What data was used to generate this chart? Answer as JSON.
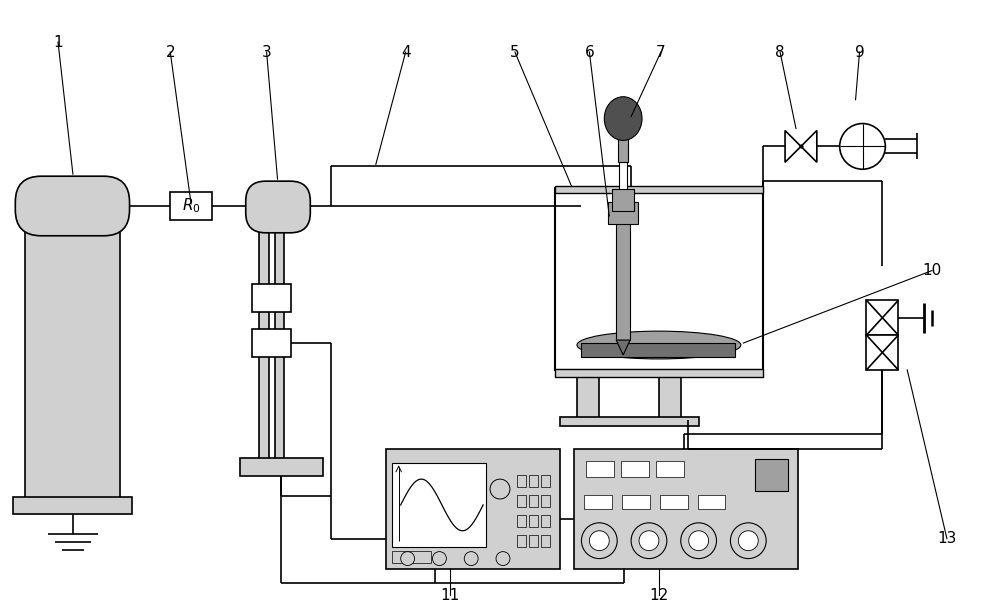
{
  "bg_color": "#ffffff",
  "lc": "#000000",
  "fill_light": "#d0d0d0",
  "fill_medium": "#a0a0a0",
  "fill_dark": "#707070",
  "fill_vdark": "#505050",
  "lw": 1.2,
  "fig_w": 10.0,
  "fig_h": 6.06,
  "dpi": 100
}
